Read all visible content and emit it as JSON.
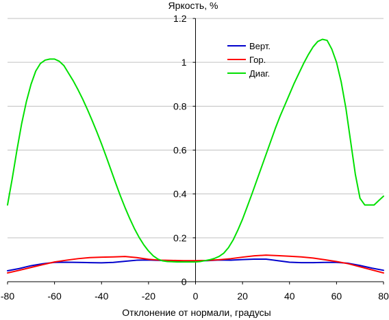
{
  "chart_data": {
    "type": "line",
    "title": "Яркость, %",
    "xlabel": "Отклонение от нормали, градусы",
    "ylabel": "",
    "xlim": [
      -80,
      80
    ],
    "ylim": [
      0,
      1.2
    ],
    "x_ticks": [
      -80,
      -60,
      -40,
      -20,
      0,
      20,
      40,
      60,
      80
    ],
    "y_ticks": [
      0,
      0.2,
      0.4,
      0.6,
      0.8,
      1,
      1.2
    ],
    "x_tick_labels": [
      "-80",
      "-60",
      "-40",
      "-20",
      "0",
      "20",
      "40",
      "60",
      "80"
    ],
    "y_tick_labels": [
      "0",
      "0.2",
      "0.4",
      "0.6",
      "0.8",
      "1",
      "1.2"
    ],
    "grid": "horizontal",
    "legend": {
      "position": "top-right"
    },
    "series": [
      {
        "name": "Верт.",
        "color": "#0000cc",
        "x": [
          -80,
          -75,
          -70,
          -65,
          -60,
          -55,
          -50,
          -45,
          -40,
          -35,
          -30,
          -25,
          -20,
          -15,
          -10,
          -5,
          0,
          5,
          10,
          15,
          20,
          25,
          30,
          35,
          40,
          45,
          50,
          55,
          60,
          65,
          70,
          75,
          80
        ],
        "y": [
          0.05,
          0.06,
          0.073,
          0.082,
          0.088,
          0.089,
          0.088,
          0.087,
          0.086,
          0.088,
          0.093,
          0.098,
          0.099,
          0.097,
          0.095,
          0.094,
          0.095,
          0.096,
          0.099,
          0.098,
          0.101,
          0.103,
          0.103,
          0.096,
          0.089,
          0.087,
          0.087,
          0.088,
          0.088,
          0.084,
          0.074,
          0.062,
          0.052
        ]
      },
      {
        "name": "Гор.",
        "color": "#ff0000",
        "x": [
          -80,
          -75,
          -70,
          -65,
          -60,
          -55,
          -50,
          -45,
          -40,
          -35,
          -30,
          -25,
          -20,
          -15,
          -10,
          -5,
          0,
          5,
          10,
          15,
          20,
          25,
          30,
          35,
          40,
          45,
          50,
          55,
          60,
          65,
          70,
          75,
          80
        ],
        "y": [
          0.04,
          0.052,
          0.065,
          0.078,
          0.09,
          0.098,
          0.105,
          0.11,
          0.112,
          0.113,
          0.115,
          0.11,
          0.102,
          0.098,
          0.097,
          0.096,
          0.096,
          0.097,
          0.1,
          0.105,
          0.112,
          0.118,
          0.121,
          0.119,
          0.116,
          0.113,
          0.108,
          0.1,
          0.092,
          0.082,
          0.068,
          0.054,
          0.04
        ]
      },
      {
        "name": "Диаг.",
        "color": "#00e000",
        "x": [
          -80,
          -78,
          -76,
          -74,
          -72,
          -70,
          -68,
          -66,
          -64,
          -62,
          -60,
          -58,
          -56,
          -54,
          -52,
          -50,
          -48,
          -46,
          -44,
          -42,
          -40,
          -38,
          -36,
          -34,
          -32,
          -30,
          -28,
          -26,
          -24,
          -22,
          -20,
          -18,
          -16,
          -14,
          -12,
          -10,
          -8,
          -6,
          -4,
          -2,
          0,
          2,
          4,
          6,
          8,
          10,
          12,
          14,
          16,
          18,
          20,
          22,
          24,
          26,
          28,
          30,
          32,
          34,
          36,
          38,
          40,
          42,
          44,
          46,
          48,
          50,
          52,
          54,
          56,
          58,
          60,
          62,
          64,
          66,
          68,
          70,
          72,
          74,
          76,
          78,
          80
        ],
        "y": [
          0.35,
          0.47,
          0.6,
          0.72,
          0.82,
          0.9,
          0.96,
          0.995,
          1.01,
          1.015,
          1.015,
          1.005,
          0.985,
          0.95,
          0.915,
          0.875,
          0.832,
          0.785,
          0.735,
          0.683,
          0.628,
          0.57,
          0.51,
          0.45,
          0.392,
          0.338,
          0.288,
          0.242,
          0.202,
          0.168,
          0.14,
          0.118,
          0.103,
          0.095,
          0.092,
          0.091,
          0.09,
          0.09,
          0.09,
          0.09,
          0.09,
          0.092,
          0.096,
          0.1,
          0.106,
          0.115,
          0.13,
          0.155,
          0.19,
          0.235,
          0.285,
          0.342,
          0.4,
          0.46,
          0.52,
          0.58,
          0.64,
          0.7,
          0.755,
          0.805,
          0.855,
          0.905,
          0.95,
          0.995,
          1.035,
          1.07,
          1.095,
          1.105,
          1.1,
          1.06,
          1.0,
          0.91,
          0.79,
          0.64,
          0.49,
          0.38,
          0.35,
          0.35,
          0.35,
          0.37,
          0.39
        ]
      }
    ]
  }
}
